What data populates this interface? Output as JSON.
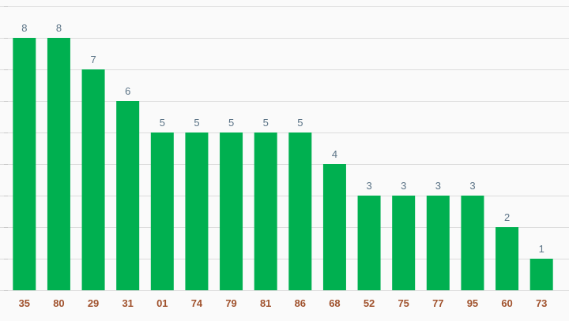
{
  "chart_data": {
    "type": "bar",
    "categories": [
      "35",
      "80",
      "29",
      "31",
      "01",
      "74",
      "79",
      "81",
      "86",
      "68",
      "52",
      "75",
      "77",
      "95",
      "60",
      "73"
    ],
    "values": [
      8,
      8,
      7,
      6,
      5,
      5,
      5,
      5,
      5,
      4,
      3,
      3,
      3,
      3,
      2,
      1
    ],
    "ylim": [
      0,
      9
    ],
    "grid": true,
    "colors": {
      "bar": "#00b050",
      "value_label": "#5b7386",
      "category_label": "#a0522d",
      "grid": "#dcdcdc"
    }
  }
}
